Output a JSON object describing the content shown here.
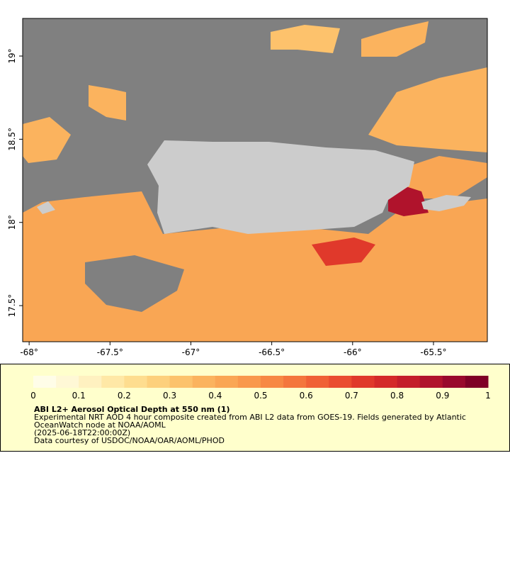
{
  "map": {
    "xlim": [
      -68.04,
      -65.167
    ],
    "ylim": [
      17.283,
      19.226
    ],
    "xticks": [
      {
        "value": -68,
        "label": "-68°"
      },
      {
        "value": -67.5,
        "label": "-67.5°"
      },
      {
        "value": -67,
        "label": "-67°"
      },
      {
        "value": -66.5,
        "label": "-66.5°"
      },
      {
        "value": -66,
        "label": "-66°"
      },
      {
        "value": -65.5,
        "label": "-65.5°"
      }
    ],
    "yticks": [
      {
        "value": 19,
        "label": "19°"
      },
      {
        "value": 18.5,
        "label": "18.5°"
      },
      {
        "value": 18,
        "label": "18°"
      },
      {
        "value": 17.5,
        "label": "17.5°"
      }
    ]
  },
  "colorbar": {
    "lim": [
      0,
      1
    ],
    "ticks": [
      0,
      0.1,
      0.2,
      0.3,
      0.4,
      0.5,
      0.6,
      0.7,
      0.8,
      0.9,
      1
    ],
    "colors": [
      "#fffde8",
      "#fff8d6",
      "#fff1c0",
      "#ffe8a6",
      "#fedd8f",
      "#fdd07c",
      "#fcc26c",
      "#fbb35e",
      "#faa654",
      "#f9984c",
      "#f78844",
      "#f4763d",
      "#f06136",
      "#ea4c30",
      "#e0392b",
      "#d42a29",
      "#c41e2b",
      "#b0132c",
      "#99092c",
      "#7f0026"
    ]
  },
  "info": {
    "title": "ABI L2+ Aerosol Optical Depth at 550 nm (1)",
    "lines": [
      "Experimental NRT AOD 4 hour composite created from ABI L2 data from GOES-19. Fields generated by Atlantic",
      "OceanWatch node at NOAA/AOML",
      "(2025-06-18T22:00:00Z)",
      "Data courtesy of USDOC/NOAA/OAR/AOML/PHOD"
    ]
  }
}
